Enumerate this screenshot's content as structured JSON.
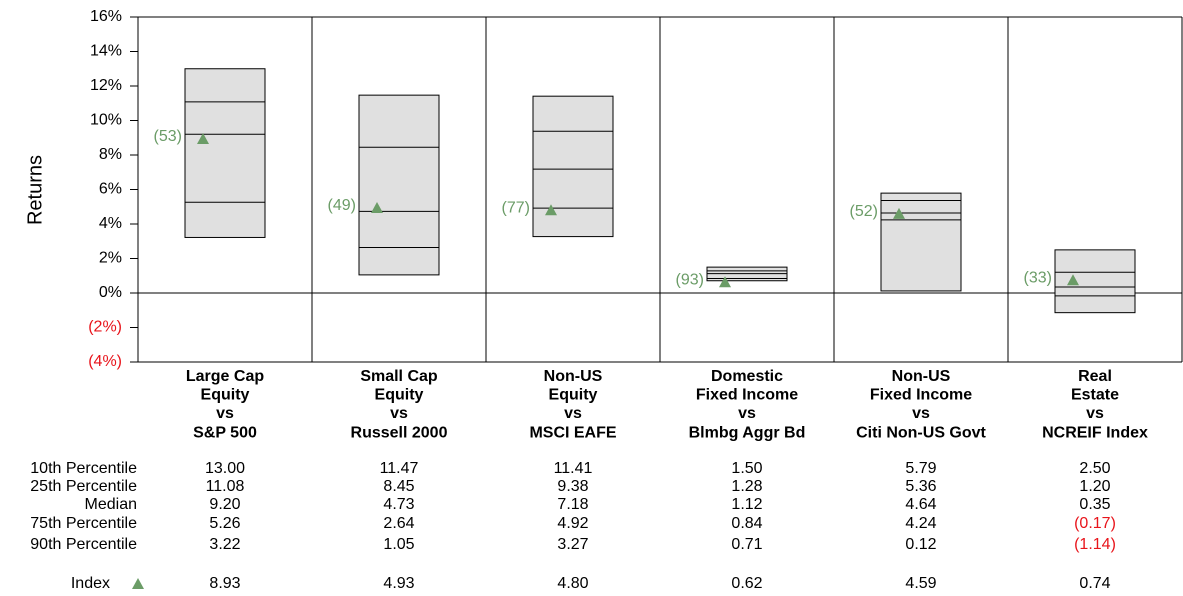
{
  "chart_data": {
    "type": "floating-box",
    "y_label": "Returns",
    "ylim": [
      -4,
      16
    ],
    "yticks": [
      {
        "value": -4,
        "label": "(4%)"
      },
      {
        "value": -2,
        "label": "(2%)"
      },
      {
        "value": 0,
        "label": "0%"
      },
      {
        "value": 2,
        "label": "2%"
      },
      {
        "value": 4,
        "label": "4%"
      },
      {
        "value": 6,
        "label": "6%"
      },
      {
        "value": 8,
        "label": "8%"
      },
      {
        "value": 10,
        "label": "10%"
      },
      {
        "value": 12,
        "label": "12%"
      },
      {
        "value": 14,
        "label": "14%"
      },
      {
        "value": 16,
        "label": "16%"
      }
    ],
    "categories": [
      [
        "Large Cap",
        "Equity",
        "vs",
        "S&P 500"
      ],
      [
        "Small Cap",
        "Equity",
        "vs",
        "Russell 2000"
      ],
      [
        "Non-US",
        "Equity",
        "vs",
        "MSCI EAFE"
      ],
      [
        "Domestic",
        "Fixed Income",
        "vs",
        "Blmbg Aggr Bd"
      ],
      [
        "Non-US",
        "Fixed Income",
        "vs",
        "Citi Non-US Govt"
      ],
      [
        "Real",
        "Estate",
        "vs",
        "NCREIF Index"
      ]
    ],
    "box_color": "#e0e0e0",
    "series": [
      {
        "name": "10th Percentile",
        "values": [
          13.0,
          11.47,
          11.41,
          1.5,
          5.79,
          2.5
        ],
        "value_labels": [
          "13.00",
          "11.47",
          "11.41",
          "1.50",
          "5.79",
          "2.50"
        ]
      },
      {
        "name": "25th Percentile",
        "values": [
          11.08,
          8.45,
          9.38,
          1.28,
          5.36,
          1.2
        ],
        "value_labels": [
          "11.08",
          "8.45",
          "9.38",
          "1.28",
          "5.36",
          "1.20"
        ]
      },
      {
        "name": "Median",
        "values": [
          9.2,
          4.73,
          7.18,
          1.12,
          4.64,
          0.35
        ],
        "value_labels": [
          "9.20",
          "4.73",
          "7.18",
          "1.12",
          "4.64",
          "0.35"
        ]
      },
      {
        "name": "75th Percentile",
        "values": [
          5.26,
          2.64,
          4.92,
          0.84,
          4.24,
          -0.17
        ],
        "value_labels": [
          "5.26",
          "2.64",
          "4.92",
          "0.84",
          "4.24",
          "(0.17)"
        ]
      },
      {
        "name": "90th Percentile",
        "values": [
          3.22,
          1.05,
          3.27,
          0.71,
          0.12,
          -1.14
        ],
        "value_labels": [
          "3.22",
          "1.05",
          "3.27",
          "0.71",
          "0.12",
          "(1.14)"
        ]
      }
    ],
    "index": {
      "name": "Index",
      "color": "#6b9c67",
      "values": [
        8.93,
        4.93,
        4.8,
        0.62,
        4.59,
        0.74
      ],
      "value_labels": [
        "8.93",
        "4.93",
        "4.80",
        "0.62",
        "4.59",
        "0.74"
      ],
      "rank_labels": [
        "(53)",
        "(49)",
        "(77)",
        "(93)",
        "(52)",
        "(33)"
      ]
    }
  }
}
